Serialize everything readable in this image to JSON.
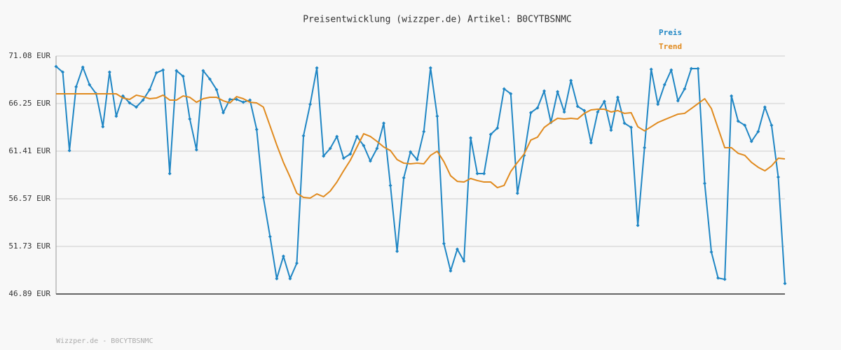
{
  "chart_data": {
    "type": "line",
    "title": "Preisentwicklung (wizzper.de) Artikel: B0CYTBSNMC",
    "footer": "Wizzper.de - B0CYTBSNMC",
    "ylim": [
      46.89,
      71.08
    ],
    "yticks": [
      {
        "value": 46.89,
        "label": "46.89 EUR"
      },
      {
        "value": 51.73,
        "label": "51.73 EUR"
      },
      {
        "value": 56.57,
        "label": "56.57 EUR"
      },
      {
        "value": 61.41,
        "label": "61.41 EUR"
      },
      {
        "value": 66.25,
        "label": "66.25 EUR"
      },
      {
        "value": 71.08,
        "label": "71.08 EUR"
      }
    ],
    "grid": true,
    "legend": "top-right",
    "series": [
      {
        "name": "Preis",
        "color": "#1f86c4",
        "markers": true,
        "values": [
          70.01,
          69.44,
          61.47,
          67.95,
          69.94,
          68.16,
          67.24,
          63.89,
          69.44,
          64.96,
          67.02,
          66.31,
          65.89,
          66.6,
          67.66,
          69.37,
          69.66,
          59.13,
          69.59,
          69.02,
          64.68,
          61.55,
          69.59,
          68.73,
          67.66,
          65.32,
          66.67,
          66.67,
          66.38,
          66.6,
          63.61,
          56.71,
          52.72,
          48.45,
          50.73,
          48.45,
          50.02,
          62.97,
          66.17,
          69.87,
          60.91,
          61.69,
          62.9,
          60.69,
          61.12,
          62.9,
          61.97,
          60.41,
          61.69,
          64.25,
          57.92,
          51.23,
          58.7,
          61.33,
          60.55,
          63.4,
          69.87,
          64.96,
          52.01,
          49.24,
          51.44,
          50.23,
          62.76,
          59.13,
          59.13,
          63.11,
          63.75,
          67.74,
          67.24,
          57.13,
          60.98,
          65.32,
          65.81,
          67.52,
          64.32,
          67.45,
          65.39,
          68.59,
          65.96,
          65.53,
          62.26,
          65.39,
          66.46,
          63.54,
          66.88,
          64.25,
          63.82,
          53.86,
          61.76,
          69.73,
          66.17,
          68.16,
          69.66,
          66.53,
          67.74,
          69.8,
          69.8,
          58.13,
          51.16,
          48.52,
          48.38,
          67.02,
          64.46,
          64.04,
          62.4,
          63.4,
          65.89,
          64.04,
          58.77,
          47.96
        ]
      },
      {
        "name": "Trend",
        "color": "#e08a1e",
        "markers": false,
        "values": [
          67.24,
          67.24,
          67.24,
          67.24,
          67.24,
          67.24,
          67.24,
          67.24,
          67.24,
          67.24,
          66.81,
          66.67,
          67.1,
          66.95,
          66.74,
          66.81,
          67.1,
          66.6,
          66.6,
          67.02,
          66.88,
          66.38,
          66.74,
          66.88,
          66.88,
          66.53,
          66.31,
          66.95,
          66.74,
          66.38,
          66.31,
          65.89,
          63.97,
          62.04,
          60.27,
          58.77,
          57.13,
          56.71,
          56.64,
          57.06,
          56.78,
          57.35,
          58.27,
          59.41,
          60.48,
          61.83,
          63.18,
          62.9,
          62.4,
          61.83,
          61.47,
          60.55,
          60.19,
          60.12,
          60.19,
          60.12,
          60.98,
          61.4,
          60.34,
          58.91,
          58.34,
          58.27,
          58.63,
          58.42,
          58.27,
          58.27,
          57.7,
          57.92,
          59.34,
          60.27,
          61.12,
          62.54,
          62.83,
          63.82,
          64.32,
          64.75,
          64.68,
          64.75,
          64.68,
          65.25,
          65.6,
          65.67,
          65.67,
          65.39,
          65.53,
          65.25,
          65.32,
          63.89,
          63.47,
          63.89,
          64.32,
          64.61,
          64.89,
          65.17,
          65.25,
          65.74,
          66.24,
          66.74,
          65.74,
          63.75,
          61.76,
          61.76,
          61.19,
          60.98,
          60.27,
          59.77,
          59.41,
          59.91,
          60.69,
          60.62
        ]
      }
    ]
  }
}
